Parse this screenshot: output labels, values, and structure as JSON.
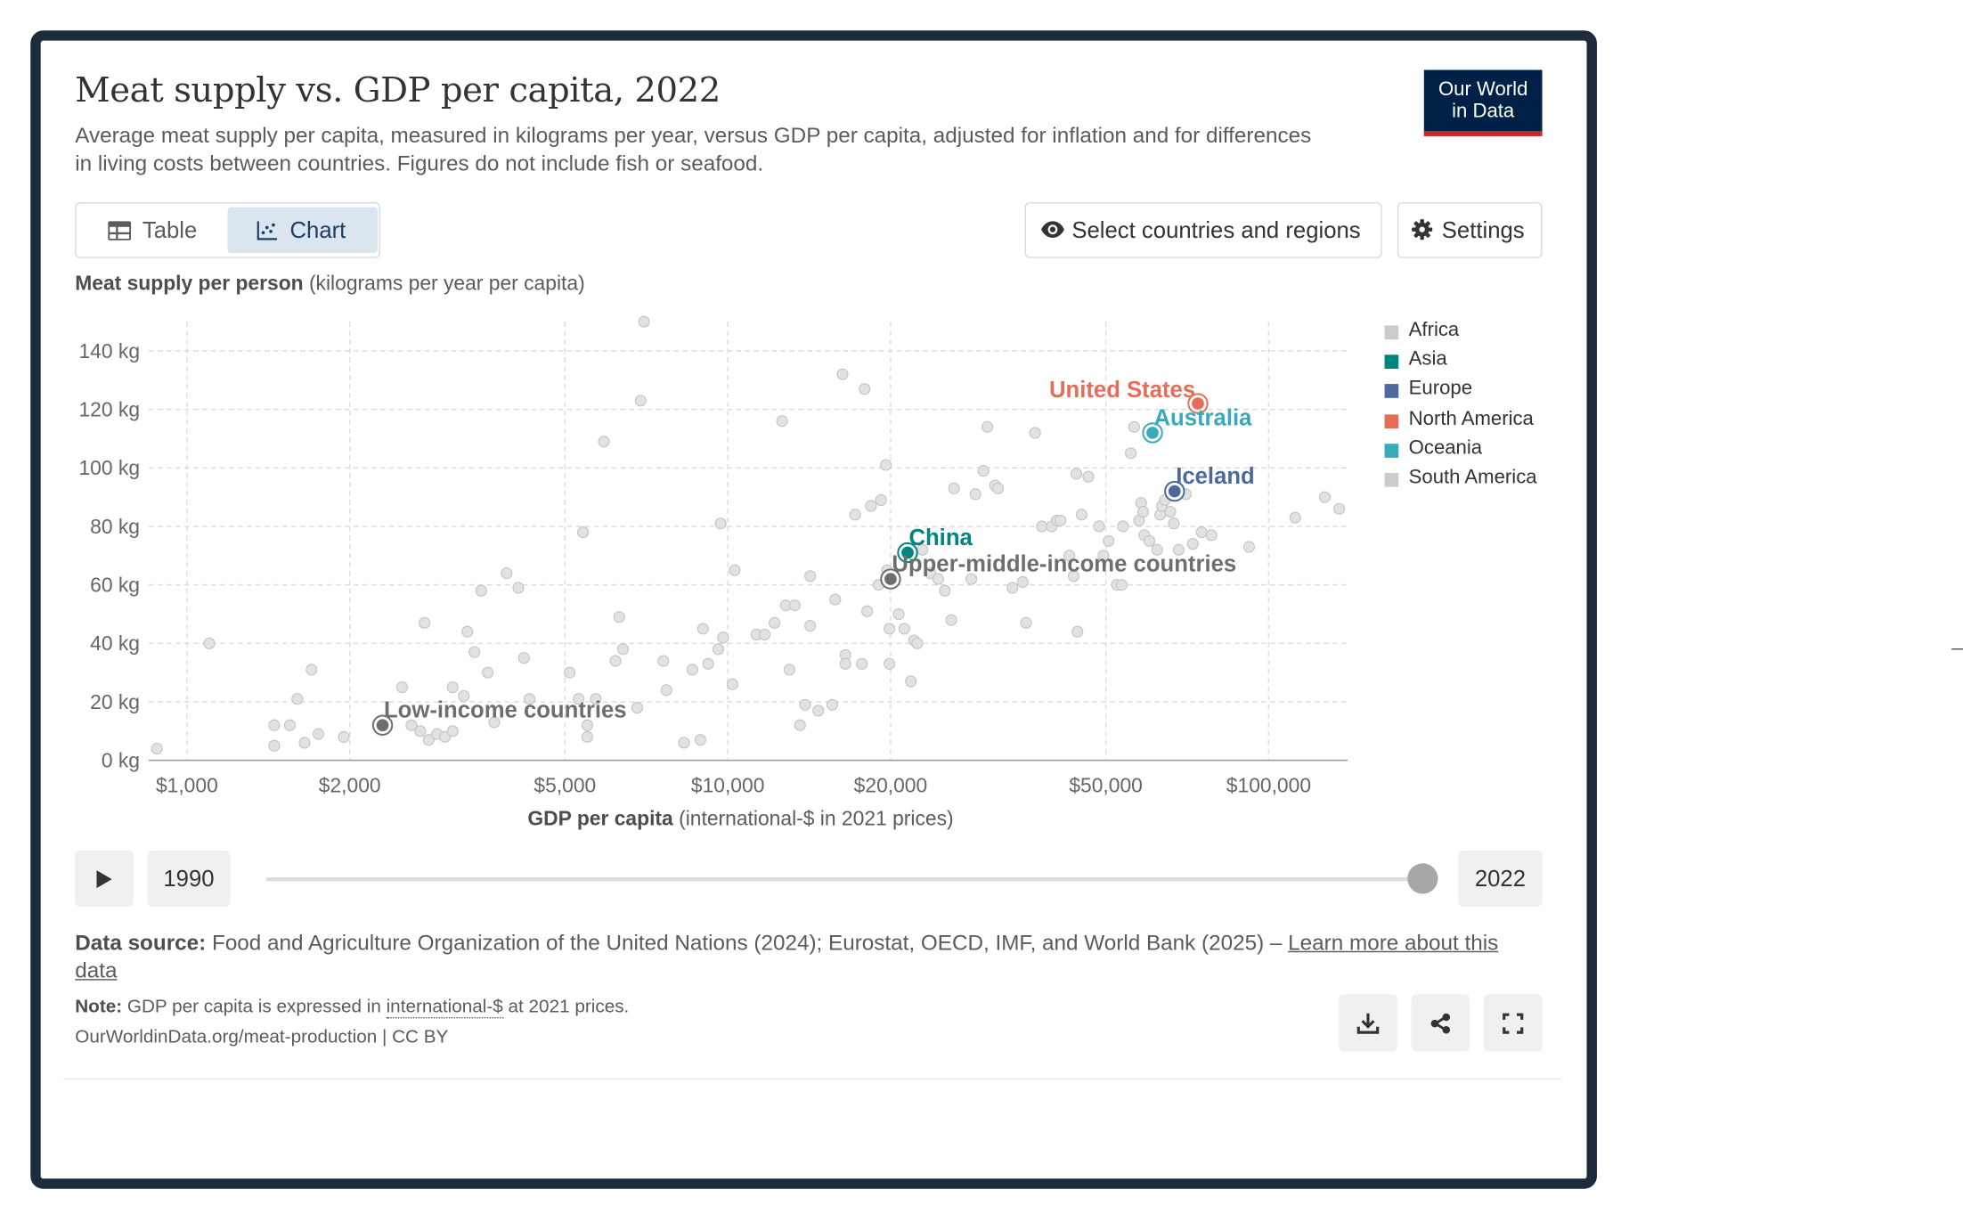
{
  "header": {
    "title": "Meat supply vs. GDP per capita, 2022",
    "subtitle": "Average meat supply per capita, measured in kilograms per year, versus GDP per capita, adjusted for inflation and for differences in living costs between countries. Figures do not include fish or seafood.",
    "logo_line1": "Our World",
    "logo_line2": "in Data"
  },
  "tabs": [
    {
      "label": "Table",
      "icon": "table-icon",
      "active": false
    },
    {
      "label": "Chart",
      "icon": "scatter-chart-icon",
      "active": true
    }
  ],
  "controls": {
    "select_label": "Select countries and regions",
    "select_icon": "eye-icon",
    "settings_label": "Settings",
    "settings_icon": "gear-icon"
  },
  "timeline": {
    "start_year": "1990",
    "end_year": "2022",
    "position": 1.0,
    "play_icon": "play-icon"
  },
  "footer": {
    "source_label": "Data source:",
    "source_text": "Food and Agriculture Organization of the United Nations (2024); Eurostat, OECD, IMF, and World Bank (2025) –",
    "learn_more": "Learn more about this data",
    "note_label": "Note:",
    "note_pre": "GDP per capita is expressed in",
    "note_link": "international-$",
    "note_post": "at 2021 prices.",
    "credit": "OurWorldinData.org/meat-production | CC BY",
    "actions": [
      {
        "name": "download-button",
        "icon": "download-icon"
      },
      {
        "name": "share-button",
        "icon": "share-icon"
      },
      {
        "name": "fullscreen-button",
        "icon": "fullscreen-icon"
      }
    ]
  },
  "chart_data": {
    "type": "scatter",
    "title": "Meat supply vs. GDP per capita, 2022",
    "ylabel_bold": "Meat supply per person",
    "ylabel_unit": "(kilograms per year per capita)",
    "xlabel_bold": "GDP per capita",
    "xlabel_unit": "(international-$ in 2021 prices)",
    "x_scale": "log",
    "xlim": [
      850,
      140000
    ],
    "ylim": [
      0,
      150
    ],
    "x_ticks": [
      {
        "value": 1000,
        "label": "$1,000"
      },
      {
        "value": 2000,
        "label": "$2,000"
      },
      {
        "value": 5000,
        "label": "$5,000"
      },
      {
        "value": 10000,
        "label": "$10,000"
      },
      {
        "value": 20000,
        "label": "$20,000"
      },
      {
        "value": 50000,
        "label": "$50,000"
      },
      {
        "value": 100000,
        "label": "$100,000"
      }
    ],
    "y_ticks": [
      {
        "value": 0,
        "label": "0 kg"
      },
      {
        "value": 20,
        "label": "20 kg"
      },
      {
        "value": 40,
        "label": "40 kg"
      },
      {
        "value": 60,
        "label": "60 kg"
      },
      {
        "value": 80,
        "label": "80 kg"
      },
      {
        "value": 100,
        "label": "100 kg"
      },
      {
        "value": 120,
        "label": "120 kg"
      },
      {
        "value": 140,
        "label": "140 kg"
      }
    ],
    "grid": true,
    "legend_position": "right",
    "legend": [
      {
        "name": "Africa",
        "color": "#cccccc"
      },
      {
        "name": "Asia",
        "color": "#00847e"
      },
      {
        "name": "Europe",
        "color": "#4c6a9c"
      },
      {
        "name": "North America",
        "color": "#e56e5a"
      },
      {
        "name": "Oceania",
        "color": "#38aaba"
      },
      {
        "name": "South America",
        "color": "#cccccc"
      }
    ],
    "highlighted": [
      {
        "name": "United States",
        "x": 74000,
        "y": 122,
        "color": "#e56e5a"
      },
      {
        "name": "Australia",
        "x": 61000,
        "y": 112,
        "color": "#38aaba"
      },
      {
        "name": "Iceland",
        "x": 67000,
        "y": 92,
        "color": "#4c6a9c"
      },
      {
        "name": "China",
        "x": 21500,
        "y": 71,
        "color": "#00847e"
      },
      {
        "name": "Upper-middle-income countries",
        "x": 20000,
        "y": 62,
        "color": "#6e6e6e"
      },
      {
        "name": "Low-income countries",
        "x": 2300,
        "y": 12,
        "color": "#6e6e6e"
      }
    ],
    "background_points": [
      [
        880,
        4
      ],
      [
        1100,
        40
      ],
      [
        1450,
        12
      ],
      [
        1450,
        5
      ],
      [
        1550,
        12
      ],
      [
        1600,
        21
      ],
      [
        1650,
        6
      ],
      [
        1700,
        31
      ],
      [
        1750,
        9
      ],
      [
        1950,
        8
      ],
      [
        2500,
        25
      ],
      [
        2600,
        12
      ],
      [
        2700,
        10
      ],
      [
        2750,
        47
      ],
      [
        2800,
        7
      ],
      [
        2900,
        9
      ],
      [
        3000,
        8
      ],
      [
        3100,
        10
      ],
      [
        3100,
        25
      ],
      [
        3250,
        22
      ],
      [
        3300,
        44
      ],
      [
        3400,
        37
      ],
      [
        3500,
        58
      ],
      [
        3600,
        30
      ],
      [
        3700,
        13
      ],
      [
        3900,
        64
      ],
      [
        4100,
        59
      ],
      [
        4200,
        35
      ],
      [
        4300,
        21
      ],
      [
        5100,
        30
      ],
      [
        5300,
        21
      ],
      [
        5400,
        78
      ],
      [
        5500,
        12
      ],
      [
        5500,
        8
      ],
      [
        5700,
        21
      ],
      [
        5900,
        109
      ],
      [
        6200,
        34
      ],
      [
        6300,
        49
      ],
      [
        6400,
        38
      ],
      [
        6800,
        18
      ],
      [
        6900,
        123
      ],
      [
        7000,
        150
      ],
      [
        7600,
        34
      ],
      [
        7700,
        24
      ],
      [
        8300,
        6
      ],
      [
        8600,
        31
      ],
      [
        8900,
        7
      ],
      [
        9000,
        45
      ],
      [
        9200,
        33
      ],
      [
        9600,
        38
      ],
      [
        9700,
        81
      ],
      [
        9800,
        42
      ],
      [
        10200,
        26
      ],
      [
        10300,
        65
      ],
      [
        11300,
        43
      ],
      [
        11700,
        43
      ],
      [
        12200,
        47
      ],
      [
        12600,
        116
      ],
      [
        12800,
        53
      ],
      [
        13000,
        31
      ],
      [
        13300,
        53
      ],
      [
        13600,
        12
      ],
      [
        13900,
        19
      ],
      [
        14200,
        63
      ],
      [
        14200,
        46
      ],
      [
        14700,
        17
      ],
      [
        15600,
        19
      ],
      [
        15800,
        55
      ],
      [
        16300,
        132
      ],
      [
        16500,
        36
      ],
      [
        16500,
        33
      ],
      [
        17200,
        84
      ],
      [
        17700,
        33
      ],
      [
        17900,
        127
      ],
      [
        18100,
        51
      ],
      [
        18400,
        87
      ],
      [
        19000,
        60
      ],
      [
        19200,
        89
      ],
      [
        19600,
        101
      ],
      [
        19700,
        65
      ],
      [
        19900,
        45
      ],
      [
        19900,
        33
      ],
      [
        20700,
        50
      ],
      [
        21200,
        45
      ],
      [
        21800,
        27
      ],
      [
        22100,
        41
      ],
      [
        22400,
        40
      ],
      [
        22900,
        72
      ],
      [
        23700,
        64
      ],
      [
        24500,
        62
      ],
      [
        25200,
        58
      ],
      [
        25900,
        48
      ],
      [
        26200,
        93
      ],
      [
        28200,
        62
      ],
      [
        28700,
        91
      ],
      [
        29700,
        99
      ],
      [
        30200,
        114
      ],
      [
        31200,
        94
      ],
      [
        31600,
        93
      ],
      [
        33600,
        59
      ],
      [
        35100,
        61
      ],
      [
        35600,
        47
      ],
      [
        37000,
        112
      ],
      [
        38100,
        80
      ],
      [
        39700,
        80
      ],
      [
        40600,
        82
      ],
      [
        41200,
        82
      ],
      [
        42800,
        70
      ],
      [
        43600,
        63
      ],
      [
        44100,
        98
      ],
      [
        44300,
        44
      ],
      [
        45100,
        84
      ],
      [
        46400,
        97
      ],
      [
        48600,
        80
      ],
      [
        49500,
        70
      ],
      [
        50600,
        75
      ],
      [
        52400,
        60
      ],
      [
        53500,
        60
      ],
      [
        53800,
        80
      ],
      [
        55600,
        105
      ],
      [
        56400,
        114
      ],
      [
        57600,
        82
      ],
      [
        58100,
        88
      ],
      [
        58600,
        85
      ],
      [
        58900,
        77
      ],
      [
        60200,
        75
      ],
      [
        62200,
        72
      ],
      [
        63000,
        84
      ],
      [
        63500,
        87
      ],
      [
        64300,
        89
      ],
      [
        65800,
        85
      ],
      [
        66800,
        81
      ],
      [
        68200,
        72
      ],
      [
        70300,
        91
      ],
      [
        72400,
        74
      ],
      [
        75200,
        78
      ],
      [
        78400,
        77
      ],
      [
        92000,
        73
      ],
      [
        112000,
        83
      ],
      [
        127000,
        90
      ],
      [
        135000,
        86
      ]
    ]
  }
}
